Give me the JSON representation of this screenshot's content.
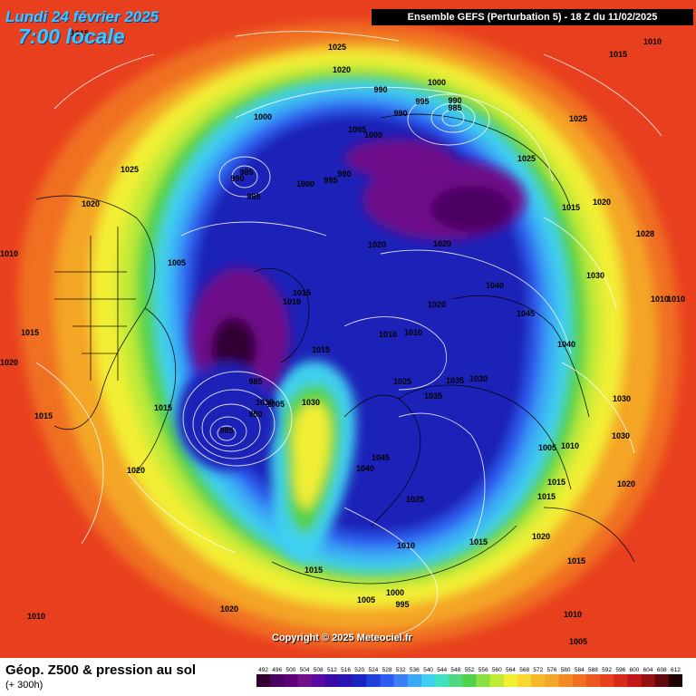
{
  "header": {
    "date_line": "Lundi 24 février 2025",
    "time_line": "7:00 locale",
    "run_info": "Ensemble GEFS  (Perturbation 5)  -  18 Z du 11/02/2025"
  },
  "copyright": "Copyright © 2025 Meteociel.fr",
  "footer": {
    "title": "Géop. Z500 & pression au sol",
    "lead_time": "(+ 300h)"
  },
  "colors": {
    "sea_red": "#e8401e",
    "deep_purple": "#4a0a5e",
    "navy": "#1a24b8",
    "blue": "#2f5cf0",
    "cyan": "#3fd0f0",
    "green": "#52d24a",
    "yellow": "#f2ee34",
    "orange": "#f4a628"
  },
  "scale_values": [
    "492",
    "496",
    "500",
    "504",
    "508",
    "512",
    "516",
    "520",
    "524",
    "528",
    "532",
    "536",
    "540",
    "544",
    "548",
    "552",
    "556",
    "560",
    "564",
    "568",
    "572",
    "576",
    "580",
    "584",
    "588",
    "592",
    "596",
    "600",
    "604",
    "608",
    "612"
  ],
  "scale_colors": [
    "#300030",
    "#4a0060",
    "#600078",
    "#70108a",
    "#5a0aa0",
    "#3a0aa8",
    "#2a14b4",
    "#1a24c0",
    "#2040d8",
    "#2f5cf0",
    "#3a80f4",
    "#3aa8f4",
    "#3fd0f0",
    "#40e0c0",
    "#50d880",
    "#52d24a",
    "#8ae040",
    "#c0ea38",
    "#f2ee34",
    "#f8d830",
    "#f4b828",
    "#f4a628",
    "#f48a24",
    "#f07020",
    "#ea5820",
    "#e8401e",
    "#d82a1a",
    "#c01818",
    "#980f12",
    "#60080c",
    "#200404"
  ],
  "pressure_labels": [
    {
      "id": "p-a",
      "value": "1015"
    },
    {
      "id": "p-b",
      "value": "1025"
    },
    {
      "id": "p-c",
      "value": "1020"
    },
    {
      "id": "p-d",
      "value": "1000"
    },
    {
      "id": "p-e",
      "value": "990"
    },
    {
      "id": "p-f",
      "value": "995"
    },
    {
      "id": "p-g",
      "value": "990"
    },
    {
      "id": "p-h",
      "value": "990"
    },
    {
      "id": "p-i",
      "value": "985"
    },
    {
      "id": "p-j",
      "value": "1010"
    },
    {
      "id": "p-k",
      "value": "1015"
    },
    {
      "id": "p-l",
      "value": "1000"
    },
    {
      "id": "p-m",
      "value": "1025"
    },
    {
      "id": "p-n",
      "value": "1025"
    },
    {
      "id": "p-o",
      "value": "1005"
    },
    {
      "id": "p-p",
      "value": "1000"
    },
    {
      "id": "p-q",
      "value": "985"
    },
    {
      "id": "p-r",
      "value": "990"
    },
    {
      "id": "p-s",
      "value": "995"
    },
    {
      "id": "p-t",
      "value": "1000"
    },
    {
      "id": "p-u",
      "value": "995"
    },
    {
      "id": "p-v",
      "value": "990"
    },
    {
      "id": "p-w",
      "value": "1025"
    },
    {
      "id": "p-x",
      "value": "1015"
    },
    {
      "id": "p-y",
      "value": "1020"
    },
    {
      "id": "p-z",
      "value": "1020"
    },
    {
      "id": "p-aa",
      "value": "1010"
    },
    {
      "id": "p-ab",
      "value": "1020"
    },
    {
      "id": "p-ac",
      "value": "1005"
    },
    {
      "id": "p-ad",
      "value": "1020"
    },
    {
      "id": "p-ae",
      "value": "1028"
    },
    {
      "id": "p-af",
      "value": "1015"
    },
    {
      "id": "p-ag",
      "value": "1010"
    },
    {
      "id": "p-ah",
      "value": "1020"
    },
    {
      "id": "p-ai",
      "value": "1040"
    },
    {
      "id": "p-aj",
      "value": "1030"
    },
    {
      "id": "p-ak",
      "value": "1045"
    },
    {
      "id": "p-al",
      "value": "1010"
    },
    {
      "id": "p-am",
      "value": "1010"
    },
    {
      "id": "p-an",
      "value": "1040"
    },
    {
      "id": "p-ao",
      "value": "1010"
    },
    {
      "id": "p-ap",
      "value": "1010"
    },
    {
      "id": "p-aq",
      "value": "1015"
    },
    {
      "id": "p-ar",
      "value": "1025"
    },
    {
      "id": "p-as",
      "value": "1035"
    },
    {
      "id": "p-at",
      "value": "1030"
    },
    {
      "id": "p-au",
      "value": "1035"
    },
    {
      "id": "p-av",
      "value": "1030"
    },
    {
      "id": "p-aw",
      "value": "1015"
    },
    {
      "id": "p-ax",
      "value": "985"
    },
    {
      "id": "p-ay",
      "value": "1030"
    },
    {
      "id": "p-az",
      "value": "1015"
    },
    {
      "id": "p-ba",
      "value": "1005"
    },
    {
      "id": "p-bb",
      "value": "1030"
    },
    {
      "id": "p-bc",
      "value": "1020"
    },
    {
      "id": "p-bd",
      "value": "985"
    },
    {
      "id": "p-be",
      "value": "950"
    },
    {
      "id": "p-bf",
      "value": "1010"
    },
    {
      "id": "p-bg",
      "value": "1015"
    },
    {
      "id": "p-bh",
      "value": "1045"
    },
    {
      "id": "p-bi",
      "value": "1040"
    },
    {
      "id": "p-bj",
      "value": "1005"
    },
    {
      "id": "p-bk",
      "value": "1010"
    },
    {
      "id": "p-bl",
      "value": "1020"
    },
    {
      "id": "p-bm",
      "value": "1015"
    },
    {
      "id": "p-bn",
      "value": "1015"
    },
    {
      "id": "p-bo",
      "value": "1020"
    },
    {
      "id": "p-bp",
      "value": "1025"
    },
    {
      "id": "p-bq",
      "value": "1015"
    },
    {
      "id": "p-br",
      "value": "1020"
    },
    {
      "id": "p-bs",
      "value": "1010"
    },
    {
      "id": "p-bt",
      "value": "1015"
    },
    {
      "id": "p-bu",
      "value": "1015"
    },
    {
      "id": "p-bv",
      "value": "1005"
    },
    {
      "id": "p-bw",
      "value": "1000"
    },
    {
      "id": "p-bx",
      "value": "995"
    },
    {
      "id": "p-by",
      "value": "1010"
    },
    {
      "id": "p-bz",
      "value": "1020"
    },
    {
      "id": "p-ca",
      "value": "1010"
    },
    {
      "id": "p-cb",
      "value": "1005"
    }
  ]
}
